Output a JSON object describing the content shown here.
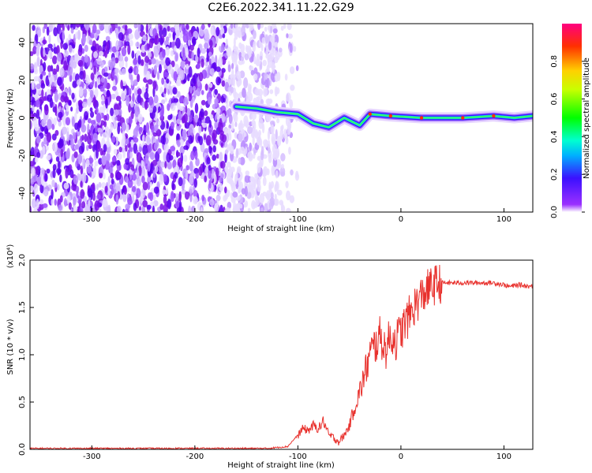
{
  "title": "C2E6.2022.341.11.22.G29",
  "chart_data": [
    {
      "type": "heatmap",
      "xlabel": "Height of straight line (km)",
      "ylabel": "Frequency (Hz)",
      "xlim": [
        -360,
        128
      ],
      "ylim": [
        -50,
        50
      ],
      "xticks": [
        -300,
        -200,
        -100,
        0,
        100
      ],
      "yticks": [
        40,
        20,
        0,
        -20,
        -40
      ],
      "colorbar": {
        "label": "Normalized spectral amplitude",
        "range": [
          0,
          1
        ],
        "ticks": [
          "0.0",
          "0.2",
          "0.4",
          "0.6",
          "0.8"
        ]
      },
      "noise_region": {
        "x_from": -360,
        "x_to": -120,
        "freq_range": [
          -50,
          50
        ]
      },
      "ridge": [
        {
          "x": -160,
          "freq": 6
        },
        {
          "x": -140,
          "freq": 5
        },
        {
          "x": -120,
          "freq": 3
        },
        {
          "x": -100,
          "freq": 2
        },
        {
          "x": -85,
          "freq": -3
        },
        {
          "x": -70,
          "freq": -5
        },
        {
          "x": -55,
          "freq": 0
        },
        {
          "x": -40,
          "freq": -4
        },
        {
          "x": -30,
          "freq": 2
        },
        {
          "x": -10,
          "freq": 1
        },
        {
          "x": 20,
          "freq": 0
        },
        {
          "x": 60,
          "freq": 0
        },
        {
          "x": 90,
          "freq": 1
        },
        {
          "x": 110,
          "freq": 0
        },
        {
          "x": 128,
          "freq": 1
        }
      ]
    },
    {
      "type": "line",
      "xlabel": "Height of straight line (km)",
      "ylabel": "SNR (10 * v/v)",
      "y_multiplier": "(x10⁴)",
      "xlim": [
        -360,
        128
      ],
      "ylim": [
        0.0,
        2.0
      ],
      "xticks": [
        -300,
        -200,
        -100,
        0,
        100
      ],
      "yticks": [
        "0.0",
        "0.5",
        "1.0",
        "1.5",
        "2.0"
      ],
      "series": [
        {
          "color": "#e8312d",
          "x": [
            -360,
            -300,
            -200,
            -130,
            -110,
            -100,
            -95,
            -90,
            -85,
            -80,
            -75,
            -70,
            -65,
            -60,
            -55,
            -50,
            -45,
            -40,
            -35,
            -30,
            -25,
            -20,
            -15,
            -10,
            -5,
            0,
            5,
            10,
            15,
            20,
            25,
            30,
            35,
            40,
            50,
            60,
            70,
            80,
            90,
            100,
            105,
            110,
            115,
            120,
            128
          ],
          "y": [
            0.01,
            0.01,
            0.01,
            0.01,
            0.03,
            0.15,
            0.22,
            0.2,
            0.25,
            0.22,
            0.3,
            0.15,
            0.12,
            0.08,
            0.15,
            0.25,
            0.45,
            0.6,
            0.8,
            1.0,
            1.1,
            1.2,
            1.05,
            1.2,
            1.15,
            1.25,
            1.35,
            1.45,
            1.55,
            1.62,
            1.68,
            1.72,
            1.75,
            1.76,
            1.76,
            1.76,
            1.76,
            1.76,
            1.76,
            1.74,
            1.72,
            1.73,
            1.74,
            1.73,
            1.72
          ]
        }
      ]
    }
  ]
}
